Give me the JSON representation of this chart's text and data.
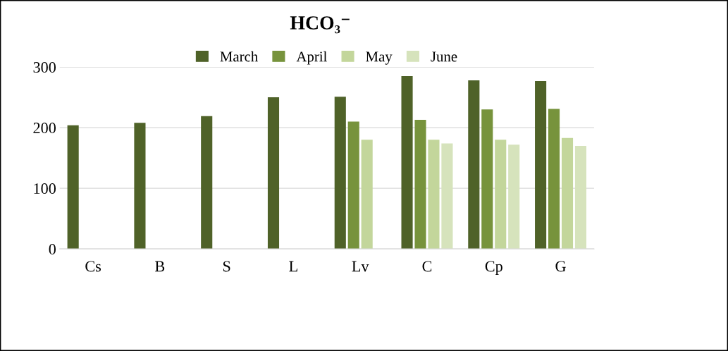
{
  "chart_data": {
    "type": "bar",
    "title": "HCO₃⁻",
    "categories": [
      "Cs",
      "B",
      "S",
      "L",
      "Lv",
      "C",
      "Cp",
      "G"
    ],
    "series": [
      {
        "name": "March",
        "color": "#4f6228",
        "values": [
          204,
          208,
          219,
          250,
          251,
          285,
          278,
          277
        ]
      },
      {
        "name": "April",
        "color": "#77933c",
        "values": [
          null,
          null,
          null,
          null,
          210,
          213,
          230,
          231
        ]
      },
      {
        "name": "May",
        "color": "#c3d69b",
        "values": [
          null,
          null,
          null,
          null,
          180,
          180,
          180,
          183
        ]
      },
      {
        "name": "June",
        "color": "#d6e3bc",
        "values": [
          null,
          null,
          null,
          null,
          null,
          174,
          172,
          170
        ]
      }
    ],
    "ylim": [
      0,
      300
    ],
    "yticks": [
      0,
      100,
      200,
      300
    ],
    "grid": "y",
    "legend": "top"
  }
}
